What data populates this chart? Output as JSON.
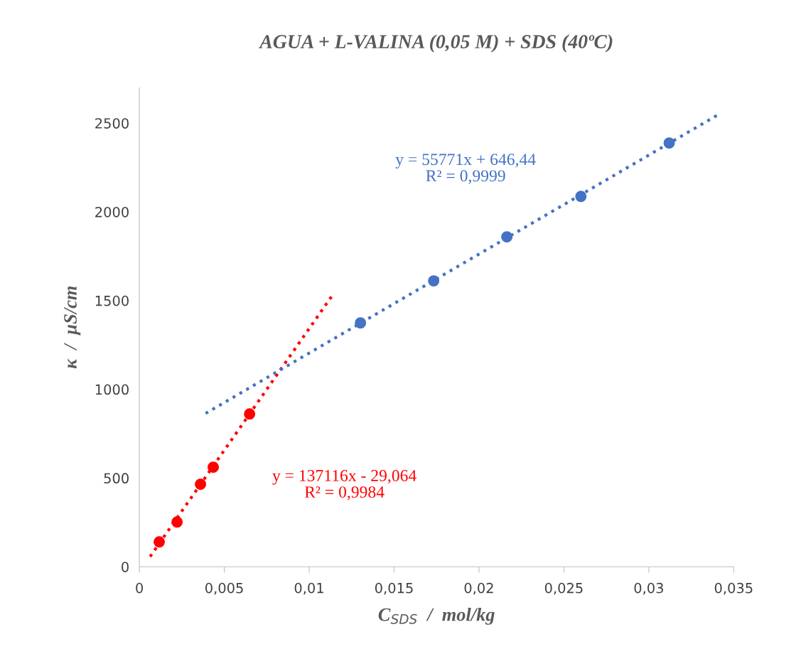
{
  "chart_data": {
    "type": "scatter",
    "title": "AGUA + L-VALINA (0,05 M) + SDS (40ºC)",
    "xlabel": "C$_{SDS}$  /  mol/kg",
    "ylabel": "κ  /  µS/cm",
    "series": [
      {
        "marker": "circle",
        "color": "#ff0000",
        "x": [
          0.00117,
          0.00222,
          0.0036,
          0.00435,
          0.00649
        ],
        "values": [
          140,
          252,
          465,
          561,
          861
        ]
      },
      {
        "marker": "circle",
        "color": "#4472c4",
        "x": [
          0.01302,
          0.01733,
          0.02164,
          0.026,
          0.0312
        ],
        "values": [
          1374,
          1611,
          1859,
          2087,
          2388
        ]
      },
      {
        "type": "line",
        "line_style": "dotted",
        "color": "#ff0000",
        "x": [
          0.00063,
          0.01147
        ],
        "values": [
          57,
          1544
        ]
      },
      {
        "type": "line",
        "line_style": "dotted",
        "color": "#4472c4",
        "x": [
          0.0039,
          0.0342
        ],
        "values": [
          864,
          2554
        ]
      }
    ],
    "annotations": [
      "y = 137116x - 29,064\nR² = 0,9984",
      "y = 55771x + 646,44\nR² = 0,9999"
    ],
    "xlim": [
      0,
      0.035
    ],
    "ylim": [
      0,
      2700
    ],
    "xticks": [
      0,
      {
        "value": 0.005,
        "label": "0,005"
      },
      {
        "value": 0.01,
        "label": "0,01"
      },
      {
        "value": 0.015,
        "label": "0,015"
      },
      {
        "value": 0.02,
        "label": "0,02"
      },
      {
        "value": 0.025,
        "label": "0,025"
      },
      {
        "value": 0.03,
        "label": "0,03"
      },
      {
        "value": 0.035,
        "label": "0,035"
      }
    ],
    "yticks": [
      0,
      500,
      1000,
      1500,
      2000,
      2500
    ],
    "grid": false,
    "legend": false
  }
}
